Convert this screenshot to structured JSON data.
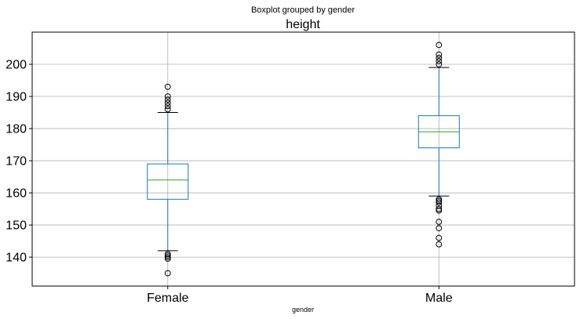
{
  "chart_data": {
    "type": "boxplot",
    "suptitle": "Boxplot grouped by gender",
    "title": "height",
    "xlabel": "gender",
    "ylabel": "",
    "categories": [
      "Female",
      "Male"
    ],
    "ylim": [
      131,
      210
    ],
    "yticks": [
      140,
      150,
      160,
      170,
      180,
      190,
      200
    ],
    "grid": true,
    "colors": {
      "box": "#1f77b4",
      "median": "#2ca02c",
      "whisker": "#1f77b4",
      "cap": "#000000",
      "flier": "#000000",
      "grid": "#b0b0b0"
    },
    "boxes": [
      {
        "category": "Female",
        "q1": 158,
        "median": 164,
        "q3": 169,
        "whisker_low": 142,
        "whisker_high": 185,
        "fliers": [
          135,
          139.5,
          140,
          140.5,
          141,
          186,
          187,
          188,
          189,
          190,
          193
        ]
      },
      {
        "category": "Male",
        "q1": 174,
        "median": 179,
        "q3": 184,
        "whisker_low": 159,
        "whisker_high": 199,
        "fliers": [
          144,
          146,
          149,
          151,
          154.5,
          155,
          156,
          157,
          157.5,
          158,
          200,
          201,
          202,
          203,
          206
        ]
      }
    ]
  }
}
